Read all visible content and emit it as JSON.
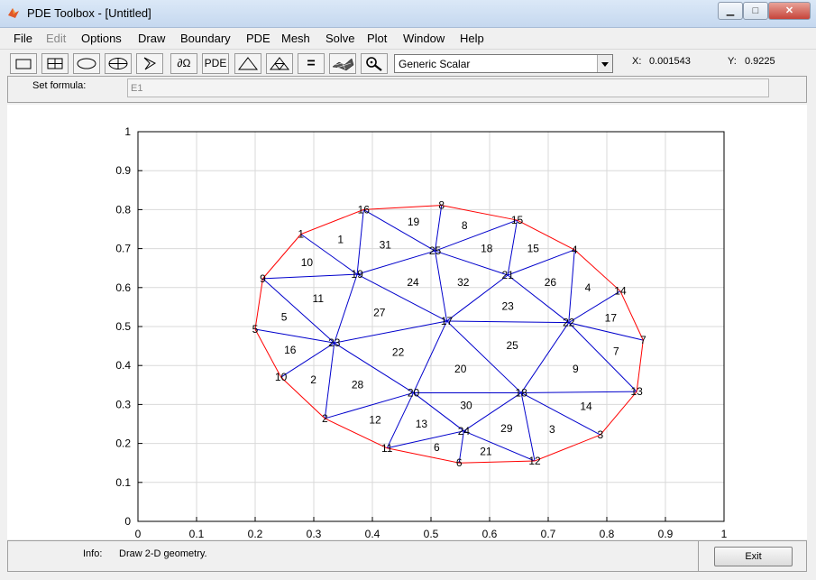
{
  "window": {
    "title": "PDE Toolbox - [Untitled]",
    "min_glyph": "▁",
    "max_glyph": "□",
    "close_glyph": "✕"
  },
  "menu": [
    "File",
    "Edit",
    "Options",
    "Draw",
    "Boundary",
    "PDE",
    "Mesh",
    "Solve",
    "Plot",
    "Window",
    "Help"
  ],
  "menu_disabled": [
    false,
    true,
    false,
    false,
    false,
    false,
    false,
    false,
    false,
    false,
    false
  ],
  "toolbar": {
    "omega_label": "∂Ω",
    "pde_label": "PDE",
    "equal_label": "=",
    "mode_select": "Generic Scalar",
    "x_label": "X:",
    "x_value": "0.001543",
    "y_label": "Y:",
    "y_value": "0.9225"
  },
  "formula": {
    "label": "Set formula:",
    "value": "E1"
  },
  "status": {
    "info_label": "Info:",
    "info_text": "Draw 2-D geometry.",
    "exit_label": "Exit"
  },
  "colors": {
    "boundary": "#ff0000",
    "mesh": "#0000cc",
    "grid": "#d9d9d9"
  },
  "chart_data": {
    "type": "mesh",
    "xlim": [
      0,
      1
    ],
    "ylim": [
      0,
      1
    ],
    "xticks": [
      "0",
      "0.1",
      "0.2",
      "0.3",
      "0.4",
      "0.5",
      "0.6",
      "0.7",
      "0.8",
      "0.9",
      "1"
    ],
    "yticks": [
      "0",
      "0.1",
      "0.2",
      "0.3",
      "0.4",
      "0.5",
      "0.6",
      "0.7",
      "0.8",
      "0.9",
      "1"
    ],
    "grid": true,
    "nodes": [
      {
        "id": "1",
        "x": 0.278,
        "y": 0.737
      },
      {
        "id": "2",
        "x": 0.319,
        "y": 0.264
      },
      {
        "id": "3",
        "x": 0.789,
        "y": 0.222
      },
      {
        "id": "4",
        "x": 0.745,
        "y": 0.697
      },
      {
        "id": "5",
        "x": 0.2,
        "y": 0.493
      },
      {
        "id": "6",
        "x": 0.548,
        "y": 0.15
      },
      {
        "id": "7",
        "x": 0.862,
        "y": 0.465
      },
      {
        "id": "8",
        "x": 0.518,
        "y": 0.811
      },
      {
        "id": "9",
        "x": 0.213,
        "y": 0.623
      },
      {
        "id": "10",
        "x": 0.244,
        "y": 0.37
      },
      {
        "id": "11",
        "x": 0.425,
        "y": 0.188
      },
      {
        "id": "12",
        "x": 0.677,
        "y": 0.155
      },
      {
        "id": "13",
        "x": 0.851,
        "y": 0.333
      },
      {
        "id": "14",
        "x": 0.823,
        "y": 0.591
      },
      {
        "id": "15",
        "x": 0.647,
        "y": 0.773
      },
      {
        "id": "16",
        "x": 0.385,
        "y": 0.8
      },
      {
        "id": "17",
        "x": 0.527,
        "y": 0.514
      },
      {
        "id": "18",
        "x": 0.654,
        "y": 0.33
      },
      {
        "id": "19",
        "x": 0.374,
        "y": 0.634
      },
      {
        "id": "20",
        "x": 0.47,
        "y": 0.33
      },
      {
        "id": "21",
        "x": 0.631,
        "y": 0.632
      },
      {
        "id": "22",
        "x": 0.735,
        "y": 0.51
      },
      {
        "id": "23",
        "x": 0.335,
        "y": 0.458
      },
      {
        "id": "24",
        "x": 0.556,
        "y": 0.232
      },
      {
        "id": "25",
        "x": 0.507,
        "y": 0.694
      }
    ],
    "boundary": [
      [
        8,
        15
      ],
      [
        15,
        4
      ],
      [
        4,
        14
      ],
      [
        14,
        7
      ],
      [
        7,
        13
      ],
      [
        13,
        3
      ],
      [
        3,
        12
      ],
      [
        12,
        6
      ],
      [
        6,
        11
      ],
      [
        11,
        2
      ],
      [
        2,
        10
      ],
      [
        10,
        5
      ],
      [
        5,
        9
      ],
      [
        9,
        1
      ],
      [
        1,
        16
      ],
      [
        16,
        8
      ]
    ],
    "triangles": [
      {
        "label": "1",
        "nodes": [
          1,
          16,
          19
        ]
      },
      {
        "label": "2",
        "nodes": [
          10,
          2,
          23
        ]
      },
      {
        "label": "3",
        "nodes": [
          18,
          3,
          12
        ]
      },
      {
        "label": "4",
        "nodes": [
          4,
          14,
          22
        ]
      },
      {
        "label": "5",
        "nodes": [
          5,
          23,
          9
        ]
      },
      {
        "label": "6",
        "nodes": [
          11,
          6,
          24
        ]
      },
      {
        "label": "7",
        "nodes": [
          22,
          7,
          13
        ]
      },
      {
        "label": "8",
        "nodes": [
          8,
          15,
          25
        ]
      },
      {
        "label": "9",
        "nodes": [
          22,
          13,
          18
        ]
      },
      {
        "label": "10",
        "nodes": [
          9,
          1,
          19
        ]
      },
      {
        "label": "11",
        "nodes": [
          9,
          19,
          23
        ]
      },
      {
        "label": "12",
        "nodes": [
          2,
          20,
          11
        ]
      },
      {
        "label": "13",
        "nodes": [
          20,
          24,
          11
        ]
      },
      {
        "label": "14",
        "nodes": [
          18,
          13,
          3
        ]
      },
      {
        "label": "15",
        "nodes": [
          15,
          4,
          21
        ]
      },
      {
        "label": "16",
        "nodes": [
          5,
          10,
          23
        ]
      },
      {
        "label": "17",
        "nodes": [
          22,
          14,
          7
        ]
      },
      {
        "label": "18",
        "nodes": [
          15,
          21,
          25
        ]
      },
      {
        "label": "19",
        "nodes": [
          16,
          8,
          25
        ]
      },
      {
        "label": "20",
        "nodes": [
          20,
          17,
          18
        ]
      },
      {
        "label": "21",
        "nodes": [
          6,
          12,
          24
        ]
      },
      {
        "label": "22",
        "nodes": [
          23,
          20,
          17
        ]
      },
      {
        "label": "23",
        "nodes": [
          17,
          21,
          22
        ]
      },
      {
        "label": "24",
        "nodes": [
          19,
          25,
          17
        ]
      },
      {
        "label": "25",
        "nodes": [
          17,
          22,
          18
        ]
      },
      {
        "label": "26",
        "nodes": [
          21,
          4,
          22
        ]
      },
      {
        "label": "27",
        "nodes": [
          19,
          17,
          23
        ]
      },
      {
        "label": "28",
        "nodes": [
          23,
          2,
          20
        ]
      },
      {
        "label": "29",
        "nodes": [
          24,
          18,
          12
        ]
      },
      {
        "label": "30",
        "nodes": [
          20,
          18,
          24
        ]
      },
      {
        "label": "31",
        "nodes": [
          16,
          25,
          19
        ]
      },
      {
        "label": "32",
        "nodes": [
          25,
          21,
          17
        ]
      }
    ]
  }
}
